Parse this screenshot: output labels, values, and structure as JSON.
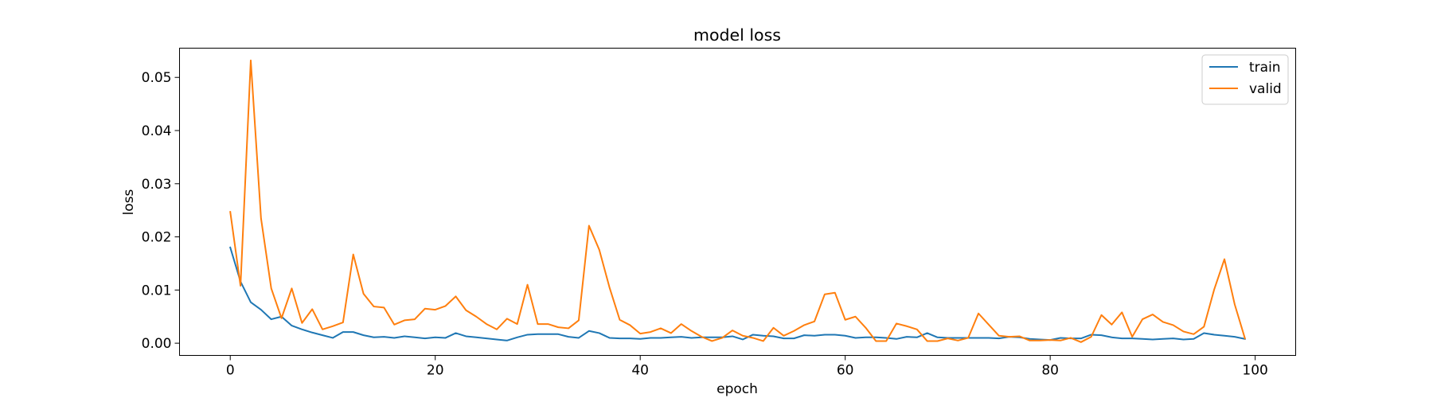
{
  "chart_data": {
    "type": "line",
    "title": "model loss",
    "xlabel": "epoch",
    "ylabel": "loss",
    "xlim": [
      -4.95,
      103.95
    ],
    "ylim": [
      -0.0023,
      0.0555
    ],
    "xticks": [
      0,
      20,
      40,
      60,
      80,
      100
    ],
    "yticks": [
      0.0,
      0.01,
      0.02,
      0.03,
      0.04,
      0.05
    ],
    "xtick_labels": [
      "0",
      "20",
      "40",
      "60",
      "80",
      "100"
    ],
    "ytick_labels": [
      "0.00",
      "0.01",
      "0.02",
      "0.03",
      "0.04",
      "0.05"
    ],
    "grid": false,
    "legend_position": "top-right",
    "x": [
      0,
      1,
      2,
      3,
      4,
      5,
      6,
      7,
      8,
      9,
      10,
      11,
      12,
      13,
      14,
      15,
      16,
      17,
      18,
      19,
      20,
      21,
      22,
      23,
      24,
      25,
      26,
      27,
      28,
      29,
      30,
      31,
      32,
      33,
      34,
      35,
      36,
      37,
      38,
      39,
      40,
      41,
      42,
      43,
      44,
      45,
      46,
      47,
      48,
      49,
      50,
      51,
      52,
      53,
      54,
      55,
      56,
      57,
      58,
      59,
      60,
      61,
      62,
      63,
      64,
      65,
      66,
      67,
      68,
      69,
      70,
      71,
      72,
      73,
      74,
      75,
      76,
      77,
      78,
      79,
      80,
      81,
      82,
      83,
      84,
      85,
      86,
      87,
      88,
      89,
      90,
      91,
      92,
      93,
      94,
      95,
      96,
      97,
      98,
      99
    ],
    "series": [
      {
        "name": "train",
        "color": "#1f77b4",
        "values": [
          0.018,
          0.0116,
          0.0077,
          0.0063,
          0.0045,
          0.005,
          0.0033,
          0.0026,
          0.002,
          0.0015,
          0.001,
          0.0021,
          0.0021,
          0.0015,
          0.0011,
          0.0012,
          0.001,
          0.0013,
          0.0011,
          0.0009,
          0.0011,
          0.001,
          0.0019,
          0.0013,
          0.0011,
          0.0009,
          0.0007,
          0.0005,
          0.0011,
          0.0016,
          0.0017,
          0.0017,
          0.0017,
          0.0012,
          0.001,
          0.0023,
          0.0019,
          0.001,
          0.0009,
          0.0009,
          0.0008,
          0.001,
          0.001,
          0.0011,
          0.0012,
          0.001,
          0.0011,
          0.0011,
          0.0011,
          0.0013,
          0.0007,
          0.0016,
          0.0014,
          0.0013,
          0.0009,
          0.0009,
          0.0015,
          0.0014,
          0.0016,
          0.0016,
          0.0014,
          0.001,
          0.0011,
          0.0011,
          0.001,
          0.0008,
          0.0012,
          0.0011,
          0.0019,
          0.0011,
          0.001,
          0.001,
          0.001,
          0.001,
          0.001,
          0.0009,
          0.0012,
          0.0011,
          0.0008,
          0.0007,
          0.0006,
          0.001,
          0.0009,
          0.0009,
          0.0016,
          0.0015,
          0.0011,
          0.0009,
          0.0009,
          0.0008,
          0.0007,
          0.0008,
          0.0009,
          0.0007,
          0.0008,
          0.0019,
          0.0016,
          0.0014,
          0.0012,
          0.0008
        ]
      },
      {
        "name": "valid",
        "color": "#ff7f0e",
        "values": [
          0.0247,
          0.0108,
          0.0532,
          0.0235,
          0.0103,
          0.0047,
          0.0103,
          0.0038,
          0.0064,
          0.0026,
          0.0032,
          0.0039,
          0.0167,
          0.0093,
          0.0069,
          0.0067,
          0.0035,
          0.0043,
          0.0045,
          0.0065,
          0.0063,
          0.007,
          0.0088,
          0.0062,
          0.005,
          0.0036,
          0.0026,
          0.0046,
          0.0036,
          0.011,
          0.0036,
          0.0036,
          0.003,
          0.0028,
          0.0043,
          0.0221,
          0.0176,
          0.0105,
          0.0044,
          0.0034,
          0.0018,
          0.0021,
          0.0028,
          0.0019,
          0.0036,
          0.0023,
          0.0012,
          0.0004,
          0.001,
          0.0024,
          0.0014,
          0.001,
          0.0004,
          0.0029,
          0.0014,
          0.0023,
          0.0034,
          0.0041,
          0.0092,
          0.0095,
          0.0044,
          0.005,
          0.0029,
          0.0004,
          0.0004,
          0.0037,
          0.0032,
          0.0026,
          0.0004,
          0.0004,
          0.0009,
          0.0005,
          0.001,
          0.0056,
          0.0035,
          0.0014,
          0.0012,
          0.0013,
          0.0005,
          0.0005,
          0.0006,
          0.0005,
          0.001,
          0.0002,
          0.0012,
          0.0053,
          0.0035,
          0.0058,
          0.0012,
          0.0045,
          0.0054,
          0.004,
          0.0034,
          0.0022,
          0.0017,
          0.0031,
          0.0101,
          0.0158,
          0.0073,
          0.0009
        ]
      }
    ]
  }
}
